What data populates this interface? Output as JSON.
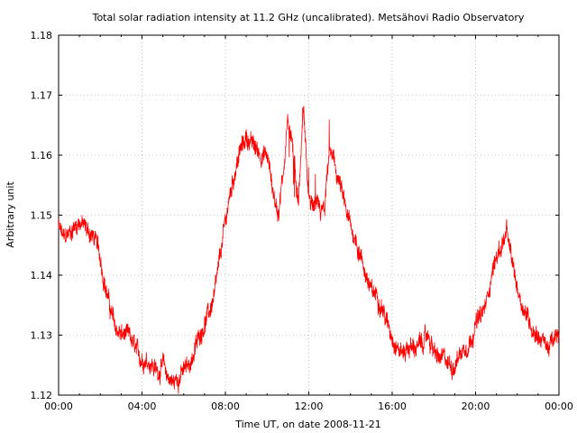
{
  "chart_data": {
    "type": "line",
    "title": "Total solar radiation intensity at 11.2 GHz (uncalibrated). Metsähovi Radio Observatory",
    "xlabel": "Time UT, on date 2008-11-21",
    "ylabel": "Arbitrary unit",
    "xlim": [
      "00:00",
      "24:00"
    ],
    "ylim": [
      1.12,
      1.18
    ],
    "x_ticks": [
      "00:00",
      "04:00",
      "08:00",
      "12:00",
      "16:00",
      "20:00",
      "00:00"
    ],
    "y_ticks": [
      "1.12",
      "1.13",
      "1.14",
      "1.15",
      "1.16",
      "1.17",
      "1.18"
    ],
    "grid": true,
    "legend": "none",
    "series": [
      {
        "color": "#ff0000",
        "x_hours": [
          0,
          0.25,
          0.5,
          0.75,
          1,
          1.25,
          1.5,
          1.75,
          2,
          2.25,
          2.5,
          2.75,
          3,
          3.25,
          3.5,
          3.75,
          4,
          4.25,
          4.5,
          4.75,
          5,
          5.25,
          5.5,
          5.75,
          6,
          6.25,
          6.5,
          6.75,
          7,
          7.25,
          7.5,
          7.75,
          8,
          8.25,
          8.5,
          8.75,
          9,
          9.25,
          9.5,
          9.75,
          10,
          10.25,
          10.5,
          10.75,
          11,
          11.25,
          11.5,
          11.75,
          12,
          12.25,
          12.5,
          12.75,
          13,
          13.25,
          13.5,
          13.75,
          14,
          14.25,
          14.5,
          14.75,
          15,
          15.25,
          15.5,
          15.75,
          16,
          16.25,
          16.5,
          16.75,
          17,
          17.25,
          17.5,
          17.75,
          18,
          18.25,
          18.5,
          18.75,
          19,
          19.25,
          19.5,
          19.75,
          20,
          20.25,
          20.5,
          20.75,
          21,
          21.25,
          21.5,
          21.75,
          22,
          22.25,
          22.5,
          22.75,
          23,
          23.25,
          23.5,
          23.75,
          24
        ],
        "values": [
          1.148,
          1.146,
          1.147,
          1.148,
          1.149,
          1.148,
          1.147,
          1.146,
          1.143,
          1.138,
          1.134,
          1.131,
          1.13,
          1.13,
          1.129,
          1.127,
          1.126,
          1.126,
          1.125,
          1.124,
          1.125,
          1.123,
          1.122,
          1.123,
          1.124,
          1.125,
          1.127,
          1.13,
          1.132,
          1.134,
          1.137,
          1.143,
          1.149,
          1.154,
          1.158,
          1.161,
          1.163,
          1.162,
          1.161,
          1.16,
          1.16,
          1.155,
          1.15,
          1.156,
          1.166,
          1.16,
          1.152,
          1.168,
          1.152,
          1.151,
          1.151,
          1.15,
          1.161,
          1.158,
          1.155,
          1.151,
          1.148,
          1.146,
          1.143,
          1.14,
          1.137,
          1.137,
          1.135,
          1.132,
          1.13,
          1.128,
          1.127,
          1.128,
          1.128,
          1.128,
          1.129,
          1.13,
          1.127,
          1.126,
          1.126,
          1.125,
          1.125,
          1.127,
          1.128,
          1.129,
          1.132,
          1.133,
          1.135,
          1.14,
          1.143,
          1.145,
          1.147,
          1.142,
          1.138,
          1.135,
          1.133,
          1.131,
          1.13,
          1.129,
          1.128,
          1.129,
          1.13
        ]
      }
    ]
  }
}
